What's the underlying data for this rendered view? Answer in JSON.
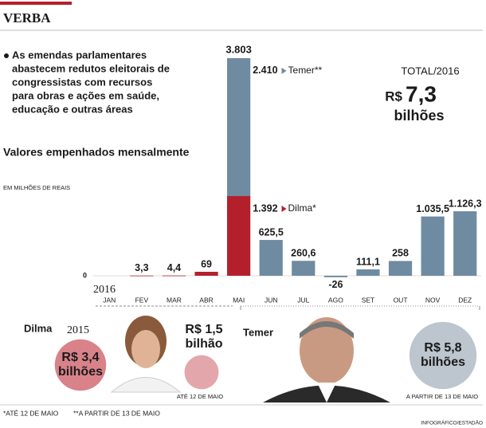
{
  "chart_data": {
    "type": "bar",
    "header": "VERBA",
    "intro_lines": [
      "As emendas parlamentares",
      "abastecem redutos eleitorais de",
      "congressistas com recursos",
      "para obras e ações em saúde,",
      "educação e outras áreas"
    ],
    "title": "Valores empenhados mensalmente",
    "unit_note": "EM MILHÕES DE REAIS",
    "year": "2016",
    "total": {
      "title": "TOTAL/2016",
      "prefix": "R$",
      "amount": "7,3",
      "unit": "bilhões"
    },
    "categories": [
      "JAN",
      "FEV",
      "MAR",
      "ABR",
      "MAI",
      "JUN",
      "JUL",
      "AGO",
      "SET",
      "OUT",
      "NOV",
      "DEZ"
    ],
    "series": [
      {
        "name": "Dilma*",
        "color": "#b3202c",
        "values": [
          null,
          3.3,
          4.4,
          69,
          1392,
          null,
          null,
          null,
          null,
          null,
          null,
          null
        ],
        "value_labels": [
          null,
          "3,3",
          "4,4",
          "69",
          "1.392",
          null,
          null,
          null,
          null,
          null,
          null,
          null
        ]
      },
      {
        "name": "Temer**",
        "color": "#6f8ba1",
        "values": [
          null,
          null,
          null,
          null,
          2410,
          625.5,
          260.6,
          -26,
          111.1,
          258,
          1035.5,
          1126.3
        ],
        "value_labels": [
          null,
          null,
          null,
          null,
          "2.410",
          "625,5",
          "260,6",
          "-26",
          "111,1",
          "258",
          "1.035,5",
          "1.126,3"
        ]
      }
    ],
    "stack_total": {
      "value": 3803,
      "label": "3.803"
    },
    "ylim": [
      -400,
      4000
    ],
    "yticks": [
      0
    ],
    "grid": true,
    "presidents": [
      {
        "name": "Dilma",
        "bubbles": [
          {
            "year": "2015",
            "value": 3.4,
            "amount": "R$ 3,4",
            "unit": "bilhões",
            "color": "#d9828a"
          },
          {
            "value": 1.5,
            "amount": "R$ 1,5",
            "unit": "bilhão",
            "color": "#e3a6ab",
            "note": "ATÉ 12 DE MAIO"
          }
        ]
      },
      {
        "name": "Temer",
        "bubbles": [
          {
            "value": 5.8,
            "amount": "R$ 5,8",
            "unit": "bilhões",
            "color": "#bdc5ce",
            "note": "A PARTIR DE 13 DE MAIO"
          }
        ]
      }
    ],
    "footnotes": [
      "*ATÉ 12 DE MAIO",
      "**A PARTIR DE 13 DE MAIO"
    ],
    "credit": "INFOGRÁFICO/ESTADÃO"
  }
}
